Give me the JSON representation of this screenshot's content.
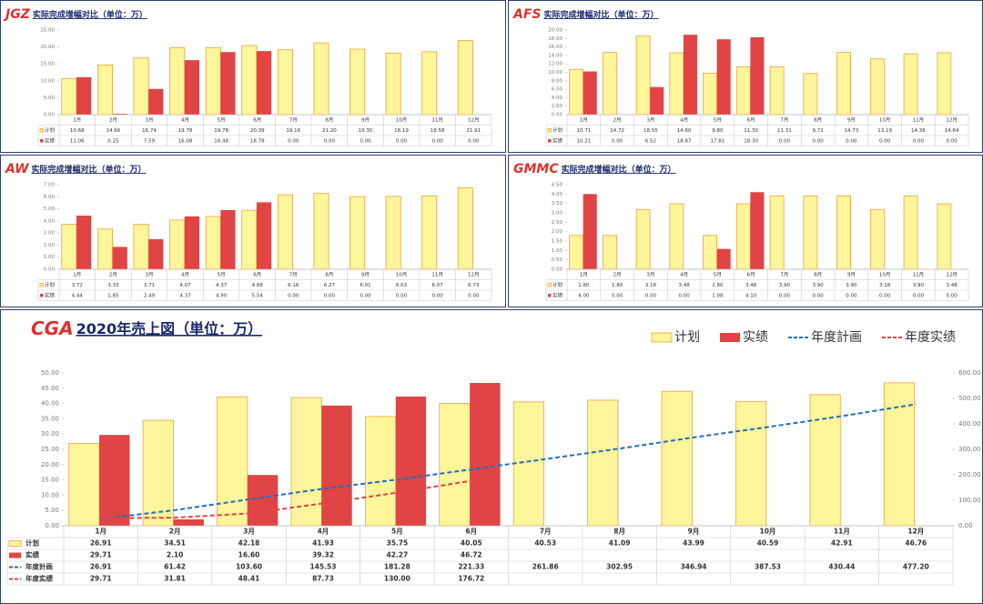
{
  "chart_data": [
    {
      "type": "bar",
      "code": "JGZ",
      "title": "实际完成增幅对比（单位：万）",
      "categories": [
        "1月",
        "2月",
        "3月",
        "4月",
        "5月",
        "6月",
        "7月",
        "8月",
        "9月",
        "10月",
        "11月",
        "12月"
      ],
      "series": [
        {
          "name": "计划",
          "color": "#fff59a",
          "edgecolor": "#f0a040",
          "values": [
            10.68,
            14.66,
            16.74,
            19.78,
            19.78,
            20.39,
            19.16,
            21.2,
            19.35,
            18.19,
            18.58,
            21.91
          ],
          "value_labels": [
            "10.68",
            "14.66",
            "16.74",
            "19.78",
            "19.78",
            "20.39",
            "19.16",
            "21.20",
            "19.35",
            "18.19",
            "18.58",
            "21.91"
          ]
        },
        {
          "name": "实绩",
          "color": "#e04444",
          "values": [
            11.06,
            0.25,
            7.59,
            16.08,
            18.48,
            18.78,
            0,
            0,
            0,
            0,
            0,
            0
          ],
          "value_labels": [
            "11.06",
            "0.25",
            "7.59",
            "16.08",
            "18.48",
            "18.78",
            "0.00",
            "0.00",
            "0.00",
            "0.00",
            "0.00",
            "0.00"
          ]
        }
      ],
      "ylim": [
        0,
        25
      ],
      "yticks": [
        {
          "value": 0,
          "label": "0.00"
        },
        {
          "value": 5,
          "label": "5.00"
        },
        {
          "value": 10,
          "label": "10.00"
        },
        {
          "value": 15,
          "label": "15.00"
        },
        {
          "value": 20,
          "label": "20.00"
        },
        {
          "value": 25,
          "label": "25.00"
        }
      ],
      "grid": false
    },
    {
      "type": "bar",
      "code": "AFS",
      "title": "实际完成增幅对比（单位：万）",
      "categories": [
        "1月",
        "2月",
        "3月",
        "4月",
        "5月",
        "6月",
        "7月",
        "8月",
        "9月",
        "10月",
        "11月",
        "12月"
      ],
      "series": [
        {
          "name": "计划",
          "color": "#fff59a",
          "edgecolor": "#f0a040",
          "values": [
            10.71,
            14.72,
            18.55,
            14.6,
            9.8,
            11.3,
            11.31,
            9.72,
            14.73,
            13.19,
            14.36,
            14.64
          ],
          "value_labels": [
            "10.71",
            "14.72",
            "18.55",
            "14.60",
            "9.80",
            "11.30",
            "11.31",
            "9.72",
            "14.73",
            "13.19",
            "14.36",
            "14.64"
          ]
        },
        {
          "name": "实绩",
          "color": "#e04444",
          "values": [
            10.21,
            0,
            6.52,
            18.87,
            17.81,
            18.3,
            0,
            0,
            0,
            0,
            0,
            0
          ],
          "value_labels": [
            "10.21",
            "0.00",
            "6.52",
            "18.87",
            "17.81",
            "18.30",
            "0.00",
            "0.00",
            "0.00",
            "0.00",
            "0.00",
            "0.00"
          ]
        }
      ],
      "ylim": [
        0,
        20
      ],
      "yticks": [
        {
          "value": 0,
          "label": "0.00"
        },
        {
          "value": 2,
          "label": "2.00"
        },
        {
          "value": 4,
          "label": "4.00"
        },
        {
          "value": 6,
          "label": "6.00"
        },
        {
          "value": 8,
          "label": "8.00"
        },
        {
          "value": 10,
          "label": "10.00"
        },
        {
          "value": 12,
          "label": "12.00"
        },
        {
          "value": 14,
          "label": "14.00"
        },
        {
          "value": 16,
          "label": "16.00"
        },
        {
          "value": 18,
          "label": "18.00"
        },
        {
          "value": 20,
          "label": "20.00"
        }
      ],
      "grid": false
    },
    {
      "type": "bar",
      "code": "AW",
      "title": "实际完成增幅对比（单位：万）",
      "categories": [
        "1月",
        "2月",
        "3月",
        "4月",
        "5月",
        "6月",
        "7月",
        "8月",
        "9月",
        "10月",
        "11月",
        "12月"
      ],
      "series": [
        {
          "name": "计划",
          "color": "#fff59a",
          "edgecolor": "#f0a040",
          "values": [
            3.72,
            3.33,
            3.71,
            4.07,
            4.37,
            4.88,
            6.16,
            6.27,
            6.01,
            6.03,
            6.07,
            6.73
          ],
          "value_labels": [
            "3.72",
            "3.33",
            "3.71",
            "4.07",
            "4.37",
            "4.88",
            "6.16",
            "6.27",
            "6.01",
            "6.03",
            "6.07",
            "6.73"
          ]
        },
        {
          "name": "实绩",
          "color": "#e04444",
          "values": [
            4.44,
            1.85,
            2.49,
            4.37,
            4.9,
            5.54,
            0,
            0,
            0,
            0,
            0,
            0
          ],
          "value_labels": [
            "4.44",
            "1.85",
            "2.49",
            "4.37",
            "4.90",
            "5.54",
            "0.00",
            "0.00",
            "0.00",
            "0.00",
            "0.00",
            "0.00"
          ]
        }
      ],
      "ylim": [
        0,
        7
      ],
      "yticks": [
        {
          "value": 0,
          "label": "0.00"
        },
        {
          "value": 1,
          "label": "1.00"
        },
        {
          "value": 2,
          "label": "2.00"
        },
        {
          "value": 3,
          "label": "3.00"
        },
        {
          "value": 4,
          "label": "4.00"
        },
        {
          "value": 5,
          "label": "5.00"
        },
        {
          "value": 6,
          "label": "6.00"
        },
        {
          "value": 7,
          "label": "7.00"
        }
      ],
      "grid": false
    },
    {
      "type": "bar",
      "code": "GMMC",
      "title": "实际完成增幅对比（单位：万）",
      "categories": [
        "1月",
        "2月",
        "3月",
        "4月",
        "5月",
        "6月",
        "7月",
        "8月",
        "9月",
        "10月",
        "11月",
        "12月"
      ],
      "series": [
        {
          "name": "计划",
          "color": "#fff59a",
          "edgecolor": "#f0a040",
          "values": [
            1.8,
            1.8,
            3.18,
            3.48,
            1.8,
            3.48,
            3.9,
            3.9,
            3.9,
            3.18,
            3.9,
            3.48
          ],
          "value_labels": [
            "1.80",
            "1.80",
            "3.18",
            "3.48",
            "1.80",
            "3.48",
            "3.90",
            "3.90",
            "3.90",
            "3.18",
            "3.90",
            "3.48"
          ]
        },
        {
          "name": "实绩",
          "color": "#e04444",
          "values": [
            4,
            0,
            0,
            0,
            1.08,
            4.1,
            0,
            0,
            0,
            0,
            0,
            0
          ],
          "value_labels": [
            "4.00",
            "0.00",
            "0.00",
            "0.00",
            "1.08",
            "4.10",
            "0.00",
            "0.00",
            "0.00",
            "0.00",
            "0.00",
            "0.00"
          ]
        }
      ],
      "ylim": [
        0,
        4.5
      ],
      "yticks": [
        {
          "value": 0,
          "label": "0.00"
        },
        {
          "value": 0.5,
          "label": "0.50"
        },
        {
          "value": 1,
          "label": "1.00"
        },
        {
          "value": 1.5,
          "label": "1.50"
        },
        {
          "value": 2,
          "label": "2.00"
        },
        {
          "value": 2.5,
          "label": "2.50"
        },
        {
          "value": 3,
          "label": "3.00"
        },
        {
          "value": 3.5,
          "label": "3.50"
        },
        {
          "value": 4,
          "label": "4.00"
        },
        {
          "value": 4.5,
          "label": "4.50"
        }
      ],
      "grid": false
    },
    {
      "type": "bar",
      "code": "CGA",
      "title": "2020年売上図（単位：万）",
      "legend": "upper right",
      "categories": [
        "1月",
        "2月",
        "3月",
        "4月",
        "5月",
        "6月",
        "7月",
        "8月",
        "9月",
        "10月",
        "11月",
        "12月"
      ],
      "series": [
        {
          "name": "计划",
          "color": "#fff59a",
          "edgecolor": "#f0a040",
          "values": [
            26.91,
            34.51,
            42.18,
            41.93,
            35.75,
            40.05,
            40.53,
            41.09,
            43.99,
            40.59,
            42.91,
            46.76
          ],
          "value_labels": [
            "26.91",
            "34.51",
            "42.18",
            "41.93",
            "35.75",
            "40.05",
            "40.53",
            "41.09",
            "43.99",
            "40.59",
            "42.91",
            "46.76"
          ]
        },
        {
          "name": "实绩",
          "color": "#e04444",
          "values": [
            29.71,
            2.1,
            16.6,
            39.32,
            42.27,
            46.72,
            null,
            null,
            null,
            null,
            null,
            null
          ],
          "value_labels": [
            "29.71",
            "2.10",
            "16.60",
            "39.32",
            "42.27",
            "46.72",
            null,
            null,
            null,
            null,
            null,
            null
          ]
        },
        {
          "name": "年度計画",
          "color": "#1f6fc0",
          "axis": "y2",
          "values": [
            26.91,
            61.42,
            103.6,
            145.53,
            181.28,
            221.33,
            261.86,
            302.95,
            346.94,
            387.53,
            430.44,
            477.2
          ],
          "value_labels": [
            "26.91",
            "61.42",
            "103.60",
            "145.53",
            "181.28",
            "221.33",
            "261.86",
            "302.95",
            "346.94",
            "387.53",
            "430.44",
            "477.20"
          ]
        },
        {
          "name": "年度实绩",
          "color": "#e04444",
          "axis": "y2",
          "values": [
            29.71,
            31.81,
            48.41,
            87.73,
            130,
            176.72,
            null,
            null,
            null,
            null,
            null,
            null
          ],
          "value_labels": [
            "29.71",
            "31.81",
            "48.41",
            "87.73",
            "130.00",
            "176.72",
            null,
            null,
            null,
            null,
            null,
            null
          ]
        }
      ],
      "ylim": [
        0,
        50
      ],
      "yticks": [
        {
          "value": 0,
          "label": "0.00"
        },
        {
          "value": 5,
          "label": "5.00"
        },
        {
          "value": 10,
          "label": "10.00"
        },
        {
          "value": 15,
          "label": "15.00"
        },
        {
          "value": 20,
          "label": "20.00"
        },
        {
          "value": 25,
          "label": "25.00"
        },
        {
          "value": 30,
          "label": "30.00"
        },
        {
          "value": 35,
          "label": "35.00"
        },
        {
          "value": 40,
          "label": "40.00"
        },
        {
          "value": 45,
          "label": "45.00"
        },
        {
          "value": 50,
          "label": "50.00"
        }
      ],
      "y2lim": [
        0,
        600
      ],
      "y2ticks": [
        {
          "value": 0,
          "label": "0.00"
        },
        {
          "value": 100,
          "label": "100.00"
        },
        {
          "value": 200,
          "label": "200.00"
        },
        {
          "value": 300,
          "label": "300.00"
        },
        {
          "value": 400,
          "label": "400.00"
        },
        {
          "value": 500,
          "label": "500.00"
        },
        {
          "value": 600,
          "label": "600.00"
        }
      ],
      "grid": false
    }
  ]
}
